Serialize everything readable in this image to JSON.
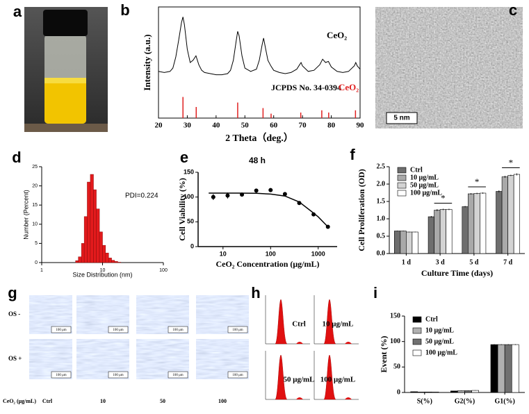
{
  "panel_labels": [
    "a",
    "b",
    "c",
    "d",
    "e",
    "f",
    "g",
    "h",
    "i"
  ],
  "tem": {
    "scale_bar": "5 nm"
  },
  "micrographs": {
    "rows": [
      "OS -",
      "OS +"
    ],
    "concentration_label": "CeO₂ (μg/mL)",
    "columns": [
      "Ctrl",
      "10",
      "50",
      "100"
    ],
    "scale_bar": "100 μm"
  },
  "flow_cytometry": {
    "labels": [
      "Ctrl",
      "10 μg/mL",
      "50 μg/mL",
      "100 μg/mL"
    ]
  },
  "chart_data": [
    {
      "type": "line",
      "x_label": "2 Theta（deg.）",
      "y_label": "Intensity (a.u.)",
      "x": [
        20,
        22,
        24,
        25,
        26,
        27,
        28,
        28.5,
        29,
        30,
        31,
        32,
        33,
        34,
        35,
        36,
        38,
        40,
        42,
        44,
        45,
        46,
        47,
        47.5,
        48,
        49,
        50,
        52,
        54,
        55,
        56,
        56.5,
        57,
        58,
        59,
        60,
        62,
        64,
        66,
        68,
        69,
        69.5,
        70,
        72,
        74,
        76,
        77,
        78,
        79,
        80,
        82,
        84,
        86,
        88,
        88.5,
        89,
        90
      ],
      "values": [
        42,
        41,
        42,
        45,
        55,
        70,
        86,
        91,
        84,
        62,
        50,
        52,
        56,
        48,
        43,
        41,
        40,
        39,
        39,
        40,
        43,
        52,
        70,
        78,
        74,
        56,
        45,
        42,
        44,
        52,
        66,
        72,
        65,
        52,
        47,
        43,
        41,
        40,
        41,
        44,
        48,
        50,
        47,
        42,
        43,
        48,
        53,
        50,
        51,
        46,
        42,
        41,
        42,
        47,
        50,
        47,
        44
      ],
      "color": "#000000",
      "series_label": "CeO₂",
      "reference": {
        "label": "JCPDS No. 34-0394",
        "name": "CeO₂",
        "color": "#e02020",
        "x": [
          28.5,
          33.1,
          47.5,
          56.3,
          59.1,
          69.4,
          76.7,
          79.1,
          88.4
        ],
        "values": [
          19,
          10,
          14,
          9,
          4,
          5,
          7,
          5,
          7
        ]
      },
      "xlim": [
        20,
        90
      ],
      "xticks": [
        20,
        30,
        40,
        50,
        60,
        70,
        80,
        90
      ],
      "ylim": [
        0,
        100
      ]
    },
    {
      "type": "histogram",
      "x_label": "Size Distribution (nm)",
      "y_label": "Number (Percent)",
      "annotation": "PDI=0.224",
      "bins": [
        3.6,
        4.0,
        4.5,
        5.0,
        5.6,
        6.3,
        7.1,
        7.9,
        8.9,
        10,
        11.2,
        12.6,
        14.1,
        15.8,
        17.8,
        20
      ],
      "values": [
        0.5,
        1.5,
        5,
        12,
        21,
        23,
        19,
        14,
        8,
        4.5,
        2.5,
        1.2,
        0.6,
        0.3,
        0.1
      ],
      "color": "#e31a1c",
      "log_x": true,
      "xlim": [
        1,
        100
      ],
      "xticks": [
        1,
        10,
        100
      ],
      "ylim": [
        0,
        25
      ],
      "yticks": [
        0,
        5,
        10,
        15,
        20,
        25
      ]
    },
    {
      "type": "scatter",
      "title": "48 h",
      "x_label": "CeO₂ Concentration (μg/mL)",
      "y_label": "Cell Viability (%)",
      "x": [
        6.25,
        12.5,
        25,
        50,
        100,
        200,
        400,
        800,
        1600
      ],
      "values": [
        100,
        103,
        105,
        113,
        114,
        106,
        88,
        65,
        40
      ],
      "errors": [
        6,
        6,
        2,
        4,
        4,
        2,
        2,
        2,
        2
      ],
      "fit": {
        "x": [
          5,
          10,
          20,
          50,
          100,
          200,
          400,
          700,
          1000,
          1600
        ],
        "values": [
          108,
          108,
          108,
          107.5,
          106,
          102,
          90,
          72,
          60,
          40
        ]
      },
      "color": "#000000",
      "log_x": true,
      "xlim": [
        3,
        2500
      ],
      "xticks": [
        10,
        100,
        1000
      ],
      "ylim": [
        0,
        150
      ],
      "yticks": [
        0,
        50,
        100,
        150
      ]
    },
    {
      "type": "bar",
      "x_label": "Culture Time (days)",
      "y_label": "Cell Proliferation (OD)",
      "categories": [
        "1 d",
        "3 d",
        "5 d",
        "7 d"
      ],
      "series": [
        {
          "name": "Ctrl",
          "color": "#6e6e6e",
          "values": [
            0.65,
            1.06,
            1.35,
            1.79
          ],
          "errors": [
            0.01,
            0.02,
            0.02,
            0.03
          ]
        },
        {
          "name": "10 μg/mL",
          "color": "#a9a9a9",
          "values": [
            0.65,
            1.25,
            1.72,
            2.21
          ],
          "errors": [
            0.01,
            0.03,
            0.02,
            0.03
          ]
        },
        {
          "name": "50 μg/mL",
          "color": "#d3d3d3",
          "values": [
            0.62,
            1.27,
            1.73,
            2.25
          ],
          "errors": [
            0.01,
            0.02,
            0.02,
            0.02
          ]
        },
        {
          "name": "100 μg/mL",
          "color": "#ffffff",
          "values": [
            0.62,
            1.27,
            1.74,
            2.28
          ],
          "errors": [
            0.01,
            0.02,
            0.02,
            0.03
          ]
        }
      ],
      "annotations": [
        {
          "text": "*",
          "category": "3 d"
        },
        {
          "text": "*",
          "category": "5 d"
        },
        {
          "text": "*",
          "category": "7 d"
        }
      ],
      "ylim": [
        0,
        2.5
      ],
      "yticks": [
        {
          "value": 0,
          "label": "0.0"
        },
        0.5,
        {
          "value": 1,
          "label": "1.0"
        },
        1.5,
        {
          "value": 2,
          "label": "2.0"
        },
        2.5
      ]
    },
    {
      "type": "bar",
      "y_label": "Event (%)",
      "categories": [
        "S(%)",
        "G2(%)",
        "G1(%)"
      ],
      "series": [
        {
          "name": "Ctrl",
          "color": "#000000",
          "values": [
            1.5,
            3,
            94
          ],
          "errors": [
            0.3,
            0.4,
            0.8
          ]
        },
        {
          "name": "10 μg/mL",
          "color": "#b0b0b0",
          "values": [
            1,
            3.5,
            94
          ],
          "errors": [
            0.3,
            0.4,
            0.8
          ]
        },
        {
          "name": "50 μg/mL",
          "color": "#707070",
          "values": [
            1,
            3.5,
            94
          ],
          "errors": [
            0.3,
            0.4,
            0.8
          ]
        },
        {
          "name": "100 μg/mL",
          "color": "#ffffff",
          "values": [
            1,
            4,
            94
          ],
          "errors": [
            0.3,
            0.4,
            0.8
          ]
        }
      ],
      "ylim": [
        0,
        150
      ],
      "yticks": [
        0,
        50,
        100,
        150
      ]
    }
  ]
}
